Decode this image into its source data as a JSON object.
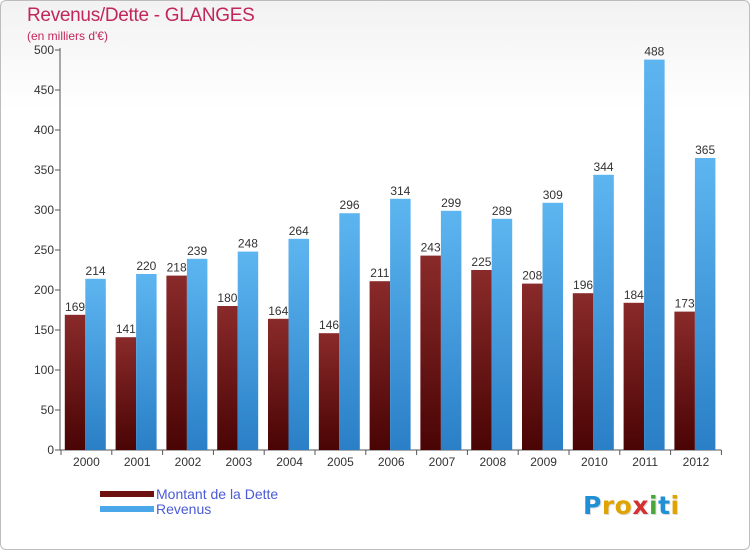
{
  "header": {
    "title": "Revenus/Dette - GLANGES",
    "subtitle": "(en milliers d'€)"
  },
  "legend": [
    {
      "label": "Montant de la Dette",
      "color": "#6e1111"
    },
    {
      "label": "Revenus",
      "color": "#4aa8ea"
    }
  ],
  "logo": {
    "text": "Proxiti",
    "letter_colors": [
      "#1f8fd6",
      "#e0a400",
      "#e0a400",
      "#d43030",
      "#4aa53a",
      "#1f8fd6",
      "#e0a400"
    ]
  },
  "chart_data": {
    "type": "bar",
    "categories": [
      "2000",
      "2001",
      "2002",
      "2003",
      "2004",
      "2005",
      "2006",
      "2007",
      "2008",
      "2009",
      "2010",
      "2011",
      "2012"
    ],
    "series": [
      {
        "name": "Montant de la Dette",
        "values": [
          169,
          141,
          218,
          180,
          164,
          146,
          211,
          243,
          225,
          208,
          196,
          184,
          173
        ],
        "color": "#6e1111"
      },
      {
        "name": "Revenus",
        "values": [
          214,
          220,
          239,
          248,
          264,
          296,
          314,
          299,
          289,
          309,
          344,
          488,
          365
        ],
        "color": "#4aa8ea"
      }
    ],
    "ylim": [
      0,
      500
    ],
    "yticks": [
      0,
      50,
      100,
      150,
      200,
      250,
      300,
      350,
      400,
      450,
      500
    ],
    "grid": false,
    "legend_position": "bottom-left"
  }
}
